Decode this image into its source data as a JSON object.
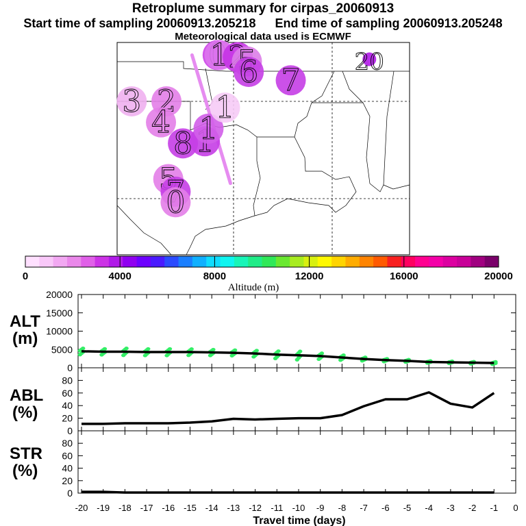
{
  "title": "Retroplume summary for cirpas_20060913",
  "sampling": {
    "start": "Start time of sampling 20060913.205218",
    "end": "End time of sampling 20060913.205248"
  },
  "met_note": "Meteorological data used is ECMWF",
  "colorbar": {
    "label": "Altitude (m)",
    "ticks": [
      "0",
      "4000",
      "8000",
      "12000",
      "16000",
      "20000"
    ],
    "colors": [
      "#ffe0ff",
      "#f9c8f9",
      "#f2a8f2",
      "#ea88ea",
      "#e060e8",
      "#cc33e6",
      "#b01ae8",
      "#9000f0",
      "#6d00ff",
      "#4a1aff",
      "#2b4bff",
      "#1a7fff",
      "#10b0ff",
      "#10dcff",
      "#10f5f0",
      "#18f5b8",
      "#20ec88",
      "#30e858",
      "#6ae830",
      "#a8ec20",
      "#d8f010",
      "#fff800",
      "#ffd400",
      "#ffac00",
      "#ff8400",
      "#ff5a00",
      "#f82020",
      "#ff0060",
      "#ff0090",
      "#f400a8",
      "#dc00a0",
      "#c80098",
      "#a00080",
      "#7a006a"
    ]
  },
  "map_points": [
    {
      "label": "0",
      "lon": -95.5,
      "lat": 35.0,
      "color": "#cc44e8"
    },
    {
      "label": "1",
      "lon": -95.4,
      "lat": 35.0,
      "color": "#dd77ee"
    },
    {
      "label": "2",
      "lon": -94.4,
      "lat": 34.9,
      "color": "#c533e4"
    },
    {
      "label": "3",
      "lon": -100.2,
      "lat": 32.8,
      "color": "#f0b0f0"
    },
    {
      "label": "2",
      "lon": -98.3,
      "lat": 32.8,
      "color": "#e37ee8"
    },
    {
      "label": "4",
      "lon": -98.6,
      "lat": 31.8,
      "color": "#e37ee8"
    },
    {
      "label": "8",
      "lon": -97.4,
      "lat": 30.8,
      "color": "#c53ee6"
    },
    {
      "label": "1",
      "lon": -96.2,
      "lat": 30.9,
      "color": "#c53ee6"
    },
    {
      "label": "1",
      "lon": -96.0,
      "lat": 31.5,
      "color": "#d25ee9"
    },
    {
      "label": "1",
      "lon": -95.1,
      "lat": 32.5,
      "color": "#f6cbf6"
    },
    {
      "label": "5",
      "lon": -93.9,
      "lat": 34.7,
      "color": "#dc7ee8"
    },
    {
      "label": "6",
      "lon": -93.8,
      "lat": 34.2,
      "color": "#c53ee6"
    },
    {
      "label": "7",
      "lon": -91.5,
      "lat": 33.8,
      "color": "#c53ee6"
    },
    {
      "label": "20",
      "lon": -87.2,
      "lat": 34.8,
      "color": "#b01ae8"
    },
    {
      "label": "5",
      "lon": -98.2,
      "lat": 29.1,
      "color": "#e37ee8"
    },
    {
      "label": "7",
      "lon": -97.8,
      "lat": 28.5,
      "color": "#c53ee6"
    },
    {
      "label": "0",
      "lon": -97.8,
      "lat": 28.0,
      "color": "#e37ee8"
    }
  ],
  "release_line": {
    "start": {
      "lon": -96.9,
      "lat": 35.0
    },
    "end": {
      "lon": -94.8,
      "lat": 28.9
    },
    "color": "#e68cf0"
  },
  "chart_data": [
    {
      "type": "line",
      "panel": "ALT",
      "ylabel": "ALT (m)",
      "ylim": [
        0,
        20000
      ],
      "yticks": [
        "20000",
        "15000",
        "10000",
        "5000",
        "0"
      ],
      "x": [
        -20,
        -19,
        -18,
        -17,
        -16,
        -15,
        -14,
        -13,
        -12,
        -11,
        -10,
        -9,
        -8,
        -7,
        -6,
        -5,
        -4,
        -3,
        -2,
        -1
      ],
      "values": [
        4500,
        4400,
        4400,
        4300,
        4300,
        4300,
        4200,
        4100,
        3900,
        3600,
        3400,
        3200,
        2800,
        2400,
        2100,
        1900,
        1600,
        1500,
        1400,
        1300
      ],
      "scatter_spread": [
        900,
        850,
        1000,
        950,
        950,
        900,
        850,
        800,
        900,
        1050,
        1200,
        850,
        700,
        500,
        400,
        350,
        300,
        300,
        300,
        350
      ],
      "scatter_color": "#33ee66"
    },
    {
      "type": "line",
      "panel": "ABL",
      "ylabel": "ABL (%)",
      "ylim": [
        0,
        100
      ],
      "yticks": [
        "80",
        "60",
        "40",
        "20",
        "0"
      ],
      "x": [
        -20,
        -19,
        -18,
        -17,
        -16,
        -15,
        -14,
        -13,
        -12,
        -11,
        -10,
        -9,
        -8,
        -7,
        -6,
        -5,
        -4,
        -3,
        -2,
        -1
      ],
      "values": [
        11,
        11,
        12,
        12,
        12,
        13,
        15,
        19,
        18,
        19,
        20,
        20,
        25,
        39,
        50,
        50,
        61,
        43,
        37,
        60
      ]
    },
    {
      "type": "line",
      "panel": "STR",
      "ylabel": "STR (%)",
      "ylim": [
        0,
        100
      ],
      "yticks": [
        "80",
        "60",
        "40",
        "20",
        "0"
      ],
      "x": [
        -20,
        -19,
        -18,
        -17,
        -16,
        -15,
        -14,
        -13,
        -12,
        -11,
        -10,
        -9,
        -8,
        -7,
        -6,
        -5,
        -4,
        -3,
        -2,
        -1
      ],
      "values": [
        2,
        2,
        1,
        1,
        1,
        1,
        1,
        1,
        1,
        1,
        1,
        1,
        1,
        1,
        1,
        1,
        1,
        1,
        1,
        1
      ]
    }
  ],
  "x_axis": {
    "label": "Travel time (days)",
    "ticks": [
      "-20",
      "-19",
      "-18",
      "-17",
      "-16",
      "-15",
      "-14",
      "-13",
      "-12",
      "-11",
      "-10",
      "-9",
      "-8",
      "-7",
      "-6",
      "-5",
      "-4",
      "-3",
      "-2",
      "-1",
      "0"
    ]
  },
  "panel_labels": {
    "alt": [
      "ALT",
      "(m)"
    ],
    "abl": [
      "ABL",
      "(%)"
    ],
    "str": [
      "STR",
      "(%)"
    ]
  }
}
